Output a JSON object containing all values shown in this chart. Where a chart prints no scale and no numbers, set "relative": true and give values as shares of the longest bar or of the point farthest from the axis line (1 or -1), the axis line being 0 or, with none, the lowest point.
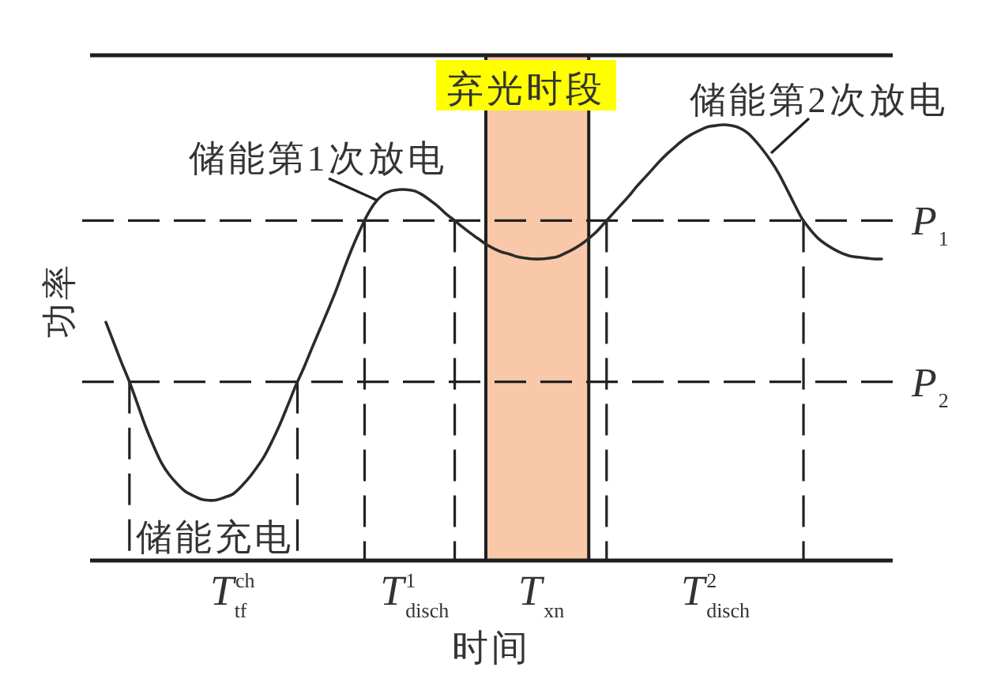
{
  "chart_data": {
    "type": "line",
    "relative": true,
    "xlabel": "时间",
    "ylabel": "功率",
    "color": "#2b2b2b",
    "line_style": "solid",
    "categories": [
      null,
      null,
      null,
      null,
      null,
      null,
      null,
      null,
      null,
      null,
      null,
      null,
      null,
      null,
      null,
      null,
      "T$^{ch}$$_{tf}$",
      null,
      null,
      null,
      null,
      null,
      null,
      null,
      null,
      null,
      null,
      null,
      null,
      null,
      null,
      null,
      null,
      null,
      null,
      null,
      null,
      null,
      null,
      "T$^{1}$$_{disch}$",
      null,
      null,
      null,
      null,
      null,
      null,
      null,
      null,
      null,
      null,
      null,
      null,
      null,
      null,
      null,
      "T$_{xn}$",
      null,
      null,
      null,
      null,
      null,
      null,
      null,
      null,
      null,
      null,
      null,
      null,
      null,
      null,
      null,
      null,
      null,
      null,
      null,
      null,
      null,
      "T$^{2}$$_{disch}$",
      null,
      null,
      null,
      null,
      null,
      null,
      null,
      null,
      null,
      null,
      null,
      null,
      null,
      null,
      null,
      null,
      null,
      null,
      null,
      null,
      null
    ],
    "values": [
      0.547,
      0.5,
      0.453,
      0.409,
      0.359,
      0.308,
      0.264,
      0.225,
      0.197,
      0.176,
      0.159,
      0.149,
      0.141,
      0.138,
      0.139,
      0.145,
      0.152,
      0.168,
      0.188,
      0.212,
      0.239,
      0.274,
      0.313,
      0.357,
      0.402,
      0.442,
      0.486,
      0.529,
      0.572,
      0.616,
      0.665,
      0.712,
      0.754,
      0.792,
      0.821,
      0.839,
      0.848,
      0.851,
      0.851,
      0.848,
      0.839,
      0.826,
      0.812,
      0.795,
      0.781,
      0.766,
      0.752,
      0.739,
      0.726,
      0.716,
      0.708,
      0.703,
      0.697,
      0.694,
      0.692,
      0.692,
      0.694,
      0.697,
      0.705,
      0.714,
      0.725,
      0.739,
      0.755,
      0.775,
      0.795,
      0.815,
      0.835,
      0.857,
      0.877,
      0.897,
      0.917,
      0.935,
      0.951,
      0.966,
      0.978,
      0.987,
      0.995,
      0.998,
      1,
      0.998,
      0.993,
      0.982,
      0.964,
      0.942,
      0.917,
      0.888,
      0.853,
      0.817,
      0.783,
      0.759,
      0.739,
      0.725,
      0.714,
      0.705,
      0.699,
      0.696,
      0.694,
      0.692,
      0.692
    ],
    "ref_lines": [
      {
        "axis": "y",
        "value": 0.78,
        "label": "P$_{1}$",
        "line_style": "dashed"
      },
      {
        "axis": "y",
        "value": 0.41,
        "label": "P$_{2}$",
        "line_style": "dashed"
      }
    ],
    "annotations": [
      "储能第1次放电",
      "储能第2次放电",
      "储能充电",
      "弃光时段"
    ]
  }
}
